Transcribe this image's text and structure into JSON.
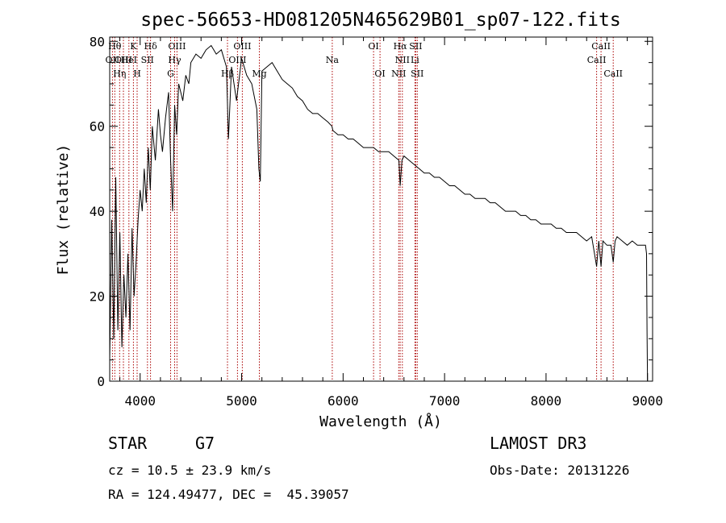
{
  "chart_data": {
    "type": "line",
    "title": "spec-56653-HD081205N465629B01_sp07-122.fits",
    "xlabel": "Wavelength (Å)",
    "ylabel": "Flux (relative)",
    "xlim": [
      3700,
      9050
    ],
    "ylim": [
      0,
      81
    ],
    "xticks": [
      4000,
      5000,
      6000,
      7000,
      8000,
      9000
    ],
    "yticks": [
      0,
      20,
      40,
      60,
      80
    ],
    "series": [
      {
        "x": [
          3700,
          3720,
          3740,
          3760,
          3780,
          3800,
          3820,
          3840,
          3860,
          3880,
          3900,
          3920,
          3940,
          3960,
          3980,
          4000,
          4020,
          4040,
          4060,
          4080,
          4100,
          4120,
          4150,
          4180,
          4200,
          4220,
          4250,
          4280,
          4300,
          4320,
          4340,
          4360,
          4380,
          4400,
          4420,
          4450,
          4480,
          4500,
          4550,
          4600,
          4650,
          4700,
          4750,
          4800,
          4850,
          4870,
          4900,
          4950,
          5000,
          5050,
          5100,
          5150,
          5170,
          5184,
          5200,
          5250,
          5300,
          5350,
          5400,
          5450,
          5500,
          5550,
          5600,
          5650,
          5700,
          5750,
          5800,
          5850,
          5890,
          5900,
          5950,
          6000,
          6050,
          6100,
          6150,
          6200,
          6250,
          6300,
          6350,
          6400,
          6450,
          6500,
          6550,
          6563,
          6580,
          6600,
          6650,
          6700,
          6750,
          6800,
          6850,
          6900,
          6950,
          7000,
          7050,
          7100,
          7150,
          7200,
          7250,
          7300,
          7350,
          7400,
          7450,
          7500,
          7550,
          7600,
          7650,
          7700,
          7750,
          7800,
          7850,
          7900,
          7950,
          8000,
          8050,
          8100,
          8150,
          8200,
          8250,
          8300,
          8350,
          8400,
          8450,
          8498,
          8520,
          8542,
          8560,
          8600,
          8640,
          8662,
          8680,
          8700,
          8750,
          8800,
          8850,
          8900,
          8950,
          8980,
          8990,
          8995,
          9000
        ],
        "values": [
          5,
          38,
          10,
          48,
          12,
          35,
          8,
          25,
          15,
          30,
          12,
          36,
          20,
          28,
          38,
          45,
          40,
          50,
          42,
          55,
          45,
          60,
          52,
          64,
          58,
          54,
          62,
          68,
          52,
          40,
          65,
          58,
          70,
          68,
          66,
          72,
          70,
          75,
          77,
          76,
          78,
          79,
          77,
          78,
          74,
          57,
          74,
          66,
          76,
          72,
          70,
          64,
          50,
          47,
          73,
          74,
          75,
          73,
          71,
          70,
          69,
          67,
          66,
          64,
          63,
          63,
          62,
          61,
          60,
          59,
          58,
          58,
          57,
          57,
          56,
          55,
          55,
          55,
          54,
          54,
          54,
          53,
          52,
          46,
          52,
          53,
          52,
          51,
          50,
          49,
          49,
          48,
          48,
          47,
          46,
          46,
          45,
          44,
          44,
          43,
          43,
          43,
          42,
          42,
          41,
          40,
          40,
          40,
          39,
          39,
          38,
          38,
          37,
          37,
          37,
          36,
          36,
          35,
          35,
          35,
          34,
          33,
          34,
          27,
          33,
          27,
          33,
          32,
          32,
          28,
          33,
          34,
          33,
          32,
          33,
          32,
          32,
          32,
          30,
          12,
          0
        ]
      }
    ],
    "line_markers": [
      {
        "wavelength": 3727,
        "label": "OII",
        "row": 2
      },
      {
        "wavelength": 3750,
        "label": "Hθ",
        "row": 1
      },
      {
        "wavelength": 3798,
        "label": "Hη",
        "row": 3
      },
      {
        "wavelength": 3835,
        "label": "OIII",
        "row": 2
      },
      {
        "wavelength": 3889,
        "label": "HeI",
        "row": 2
      },
      {
        "wavelength": 3934,
        "label": "K",
        "row": 1
      },
      {
        "wavelength": 3970,
        "label": "H",
        "row": 3
      },
      {
        "wavelength": 4072,
        "label": "SII",
        "row": 2
      },
      {
        "wavelength": 4102,
        "label": "Hδ",
        "row": 1
      },
      {
        "wavelength": 4300,
        "label": "G",
        "row": 3
      },
      {
        "wavelength": 4340,
        "label": "Hγ",
        "row": 2
      },
      {
        "wavelength": 4363,
        "label": "OIII",
        "row": 1
      },
      {
        "wavelength": 4861,
        "label": "Hβ",
        "row": 3
      },
      {
        "wavelength": 4959,
        "label": "OIII",
        "row": 2
      },
      {
        "wavelength": 5007,
        "label": "OIII",
        "row": 1
      },
      {
        "wavelength": 5175,
        "label": "Mg",
        "row": 3
      },
      {
        "wavelength": 5893,
        "label": "Na",
        "row": 2
      },
      {
        "wavelength": 6300,
        "label": "OI",
        "row": 1
      },
      {
        "wavelength": 6364,
        "label": "OI",
        "row": 3
      },
      {
        "wavelength": 6548,
        "label": "NII",
        "row": 3
      },
      {
        "wavelength": 6563,
        "label": "Hα",
        "row": 1
      },
      {
        "wavelength": 6584,
        "label": "NII",
        "row": 2
      },
      {
        "wavelength": 6708,
        "label": "Li",
        "row": 2
      },
      {
        "wavelength": 6716,
        "label": "SII",
        "row": 1
      },
      {
        "wavelength": 6731,
        "label": "SII",
        "row": 3
      },
      {
        "wavelength": 8498,
        "label": "CaII",
        "row": 2
      },
      {
        "wavelength": 8542,
        "label": "CaII",
        "row": 1
      },
      {
        "wavelength": 8662,
        "label": "CaII",
        "row": 3
      }
    ]
  },
  "info": {
    "class": "STAR",
    "subclass": "G7",
    "survey": "LAMOST DR3",
    "redshift": "cz = 10.5 ± 23.9 km/s",
    "obs_date": "Obs-Date: 20131226",
    "coords": "RA = 124.49477, DEC =  45.39057"
  },
  "colors": {
    "line": "#000000",
    "marker": "#aa0000",
    "text": "#000000"
  }
}
